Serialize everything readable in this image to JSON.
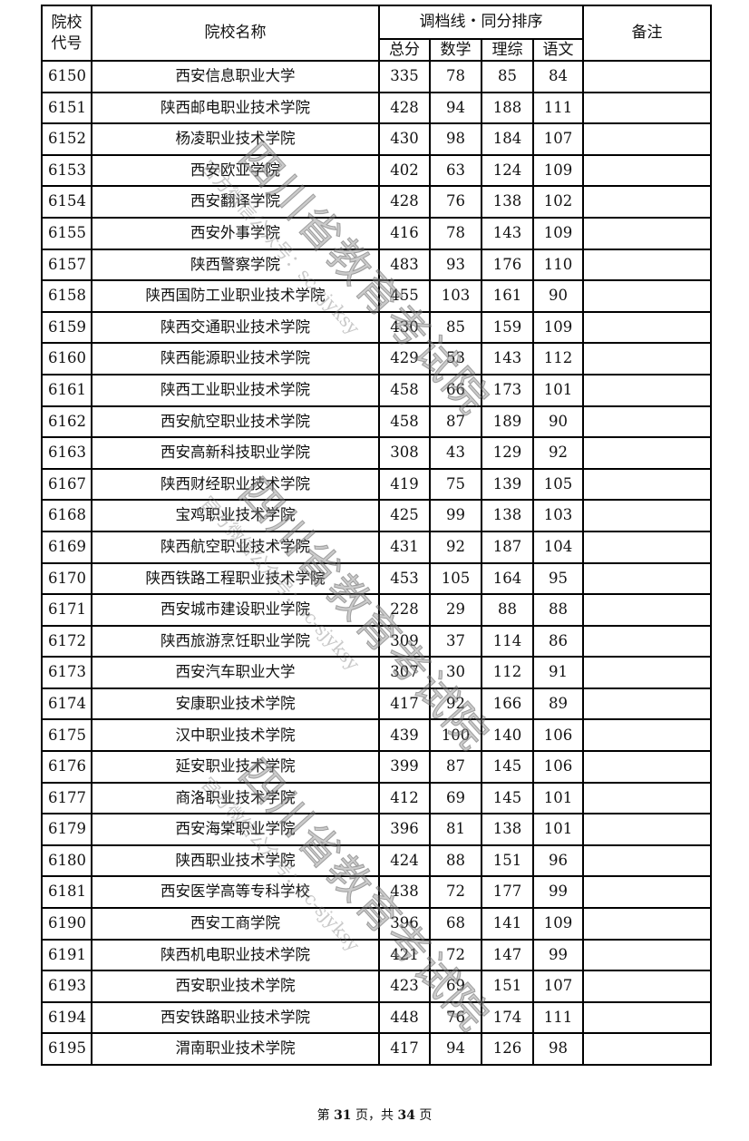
{
  "header": {
    "code_label": "院校代号",
    "name_label": "院校名称",
    "group_label": "调档线・同分排序",
    "sub_labels": [
      "总分",
      "数学",
      "理综",
      "语文"
    ],
    "remark_label": "备注"
  },
  "rows": [
    {
      "code": "6150",
      "name": "西安信息职业大学",
      "total": "335",
      "math": "78",
      "sci": "85",
      "chn": "84"
    },
    {
      "code": "6151",
      "name": "陕西邮电职业技术学院",
      "total": "428",
      "math": "94",
      "sci": "188",
      "chn": "111"
    },
    {
      "code": "6152",
      "name": "杨凌职业技术学院",
      "total": "430",
      "math": "98",
      "sci": "184",
      "chn": "107"
    },
    {
      "code": "6153",
      "name": "西安欧亚学院",
      "total": "402",
      "math": "63",
      "sci": "124",
      "chn": "109"
    },
    {
      "code": "6154",
      "name": "西安翻译学院",
      "total": "428",
      "math": "76",
      "sci": "138",
      "chn": "102"
    },
    {
      "code": "6155",
      "name": "西安外事学院",
      "total": "416",
      "math": "78",
      "sci": "143",
      "chn": "109"
    },
    {
      "code": "6157",
      "name": "陕西警察学院",
      "total": "483",
      "math": "93",
      "sci": "176",
      "chn": "110"
    },
    {
      "code": "6158",
      "name": "陕西国防工业职业技术学院",
      "total": "455",
      "math": "103",
      "sci": "161",
      "chn": "90"
    },
    {
      "code": "6159",
      "name": "陕西交通职业技术学院",
      "total": "430",
      "math": "85",
      "sci": "159",
      "chn": "109"
    },
    {
      "code": "6160",
      "name": "陕西能源职业技术学院",
      "total": "429",
      "math": "53",
      "sci": "143",
      "chn": "112"
    },
    {
      "code": "6161",
      "name": "陕西工业职业技术学院",
      "total": "458",
      "math": "66",
      "sci": "173",
      "chn": "101"
    },
    {
      "code": "6162",
      "name": "西安航空职业技术学院",
      "total": "458",
      "math": "87",
      "sci": "189",
      "chn": "90"
    },
    {
      "code": "6163",
      "name": "西安高新科技职业学院",
      "total": "308",
      "math": "43",
      "sci": "129",
      "chn": "92"
    },
    {
      "code": "6167",
      "name": "陕西财经职业技术学院",
      "total": "419",
      "math": "75",
      "sci": "139",
      "chn": "105"
    },
    {
      "code": "6168",
      "name": "宝鸡职业技术学院",
      "total": "425",
      "math": "99",
      "sci": "138",
      "chn": "103"
    },
    {
      "code": "6169",
      "name": "陕西航空职业技术学院",
      "total": "431",
      "math": "92",
      "sci": "187",
      "chn": "104"
    },
    {
      "code": "6170",
      "name": "陕西铁路工程职业技术学院",
      "total": "453",
      "math": "105",
      "sci": "164",
      "chn": "95"
    },
    {
      "code": "6171",
      "name": "西安城市建设职业学院",
      "total": "228",
      "math": "29",
      "sci": "88",
      "chn": "88"
    },
    {
      "code": "6172",
      "name": "陕西旅游烹饪职业学院",
      "total": "309",
      "math": "37",
      "sci": "114",
      "chn": "86"
    },
    {
      "code": "6173",
      "name": "西安汽车职业大学",
      "total": "307",
      "math": "30",
      "sci": "112",
      "chn": "91"
    },
    {
      "code": "6174",
      "name": "安康职业技术学院",
      "total": "417",
      "math": "92",
      "sci": "166",
      "chn": "89"
    },
    {
      "code": "6175",
      "name": "汉中职业技术学院",
      "total": "439",
      "math": "100",
      "sci": "140",
      "chn": "106"
    },
    {
      "code": "6176",
      "name": "延安职业技术学院",
      "total": "399",
      "math": "87",
      "sci": "145",
      "chn": "106"
    },
    {
      "code": "6177",
      "name": "商洛职业技术学院",
      "total": "412",
      "math": "69",
      "sci": "145",
      "chn": "101"
    },
    {
      "code": "6179",
      "name": "西安海棠职业学院",
      "total": "396",
      "math": "81",
      "sci": "138",
      "chn": "101"
    },
    {
      "code": "6180",
      "name": "陕西职业技术学院",
      "total": "424",
      "math": "88",
      "sci": "151",
      "chn": "96"
    },
    {
      "code": "6181",
      "name": "西安医学高等专科学校",
      "total": "438",
      "math": "72",
      "sci": "177",
      "chn": "99"
    },
    {
      "code": "6190",
      "name": "西安工商学院",
      "total": "396",
      "math": "68",
      "sci": "141",
      "chn": "109"
    },
    {
      "code": "6191",
      "name": "陕西机电职业技术学院",
      "total": "421",
      "math": "72",
      "sci": "147",
      "chn": "99"
    },
    {
      "code": "6193",
      "name": "西安职业技术学院",
      "total": "423",
      "math": "69",
      "sci": "151",
      "chn": "107"
    },
    {
      "code": "6194",
      "name": "西安铁路职业技术学院",
      "total": "448",
      "math": "76",
      "sci": "174",
      "chn": "111"
    },
    {
      "code": "6195",
      "name": "渭南职业技术学院",
      "total": "417",
      "math": "94",
      "sci": "126",
      "chn": "98"
    }
  ],
  "footer": {
    "prefix": "第 ",
    "page": "31",
    "middle": " 页，共 ",
    "total": "34",
    "suffix": " 页"
  },
  "watermark": {
    "main": "四川省教育考试院",
    "sub": "官方微信公众号：sc-sjyksy"
  }
}
